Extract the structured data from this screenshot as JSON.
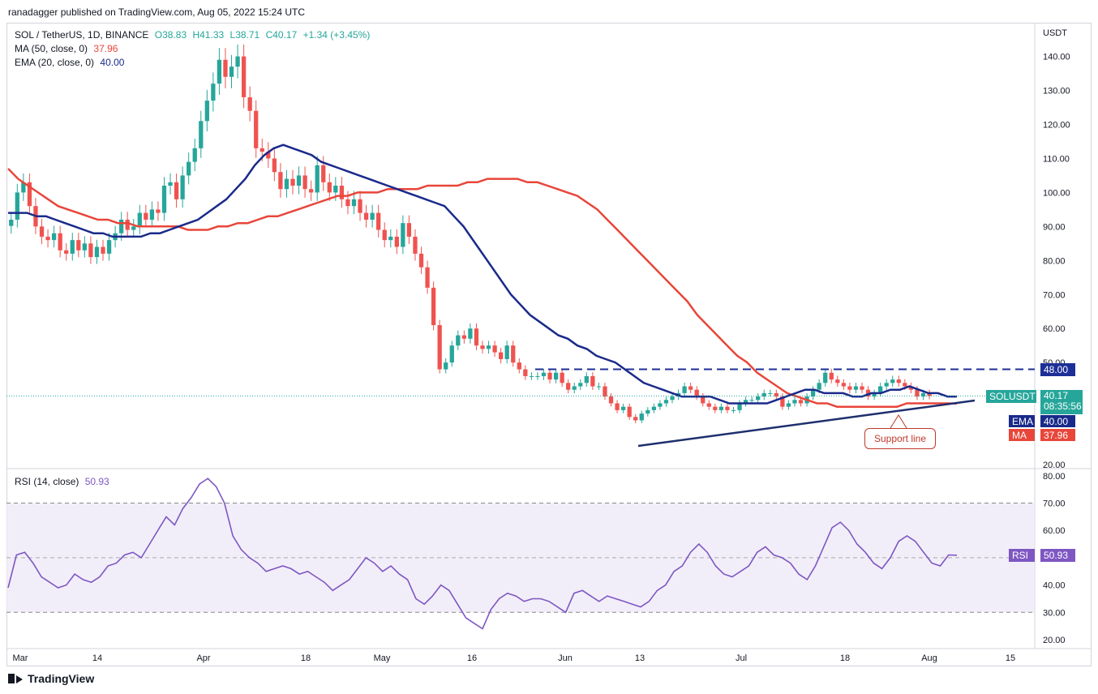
{
  "header": {
    "publisher": "ranadagger published on TradingView.com, Aug 05, 2022 15:24 UTC"
  },
  "legend": {
    "symbol": "SOL / TetherUS, 1D, BINANCE",
    "open": "O38.83",
    "high": "H41.33",
    "low": "L38.71",
    "close": "C40.17",
    "change": "+1.34 (+3.45%)",
    "ma_label": "MA (50, close, 0)",
    "ma_value": "37.96",
    "ema_label": "EMA (20, close, 0)",
    "ema_value": "40.00",
    "rsi_label": "RSI (14, close)",
    "rsi_value": "50.93"
  },
  "price_axis": {
    "unit": "USDT",
    "ticks": [
      "140.00",
      "130.00",
      "120.00",
      "110.00",
      "100.00",
      "90.00",
      "80.00",
      "70.00",
      "60.00",
      "50.00",
      "20.00"
    ]
  },
  "rsi_axis": {
    "ticks": [
      "80.00",
      "70.00",
      "60.00",
      "50.00",
      "40.00",
      "30.00",
      "20.00"
    ]
  },
  "x_axis": {
    "ticks": [
      "Mar",
      "14",
      "Apr",
      "18",
      "May",
      "16",
      "Jun",
      "13",
      "Jul",
      "18",
      "Aug",
      "15"
    ]
  },
  "tags": {
    "resistance": "48.00",
    "symbol": "SOLUSDT",
    "price": "40.17",
    "countdown": "08:35:56",
    "ema_name": "EMA",
    "ema_value": "40.00",
    "ma_name": "MA",
    "ma_value": "37.96",
    "rsi_name": "RSI",
    "rsi_value": "50.93"
  },
  "annotation": {
    "support": "Support line"
  },
  "footer": {
    "brand": "TradingView"
  },
  "colors": {
    "up": "#26a69a",
    "down": "#ef5350",
    "ema": "#1a2a8a",
    "ma": "#e8463a",
    "rsi": "#7e57c2",
    "resistance": "#1e2f97"
  },
  "chart_data": {
    "type": "candlestick",
    "title": "SOL / TetherUS, 1D, BINANCE",
    "ylabel": "USDT",
    "ylim": [
      20,
      145
    ],
    "resistance_level": 48.0,
    "x_range_days": [
      "2022-03-01",
      "2022-08-05"
    ],
    "close": [
      92,
      100,
      103,
      96,
      90,
      87,
      86,
      88,
      83,
      82,
      86,
      83,
      85,
      81,
      84,
      82,
      86,
      88,
      92,
      89,
      90,
      94,
      92,
      95,
      94,
      102,
      103,
      98,
      105,
      109,
      113,
      121,
      127,
      132,
      139,
      134,
      137,
      140,
      128,
      124,
      113,
      112,
      110,
      106,
      101,
      104,
      102,
      105,
      101,
      100,
      108,
      103,
      100,
      102,
      98,
      96,
      98,
      94,
      92,
      94,
      89,
      86,
      87,
      84,
      91,
      87,
      82,
      78,
      72,
      61,
      48,
      50,
      55,
      58,
      57,
      60,
      55,
      54,
      55,
      53,
      51,
      55,
      50,
      48,
      46,
      46,
      46,
      47,
      45,
      47,
      44,
      42,
      43,
      44,
      46,
      43,
      43,
      40,
      38,
      36,
      37,
      34,
      33,
      35,
      36,
      37,
      38,
      39,
      40,
      41,
      43,
      42,
      40,
      38,
      37,
      36,
      37,
      36,
      36,
      38,
      39,
      39,
      40,
      41,
      41,
      40,
      37,
      38,
      39,
      38,
      40,
      42,
      44,
      47,
      45,
      44,
      43,
      42,
      43,
      42,
      40,
      41,
      43,
      44,
      45,
      44,
      43,
      42,
      40,
      41,
      40.17
    ],
    "ma50": [
      107,
      104,
      102,
      100,
      98,
      96,
      95,
      94,
      93,
      92,
      92,
      91,
      91,
      90,
      90,
      90,
      90,
      90,
      89,
      89,
      89,
      90,
      90,
      91,
      91,
      92,
      93,
      93,
      94,
      95,
      96,
      97,
      98,
      99,
      99,
      100,
      100,
      100,
      101,
      101,
      101,
      101,
      102,
      102,
      102,
      102,
      103,
      103,
      104,
      104,
      104,
      104,
      103,
      103,
      102,
      101,
      100,
      99,
      97,
      95,
      92,
      89,
      86,
      83,
      80,
      77,
      74,
      71,
      68,
      64,
      61,
      58,
      55,
      52,
      50,
      47,
      45,
      43,
      41,
      40,
      39,
      38,
      38,
      37,
      37,
      37,
      37,
      37,
      37,
      37,
      38,
      38,
      38,
      38,
      38,
      37.96
    ],
    "ema20": [
      94,
      94,
      94,
      93,
      93,
      92,
      91,
      90,
      89,
      88,
      88,
      87,
      87,
      87,
      87,
      88,
      88,
      89,
      90,
      91,
      92,
      94,
      96,
      98,
      101,
      104,
      108,
      111,
      113,
      114,
      113,
      112,
      111,
      109,
      108,
      107,
      106,
      105,
      104,
      103,
      102,
      101,
      100,
      99,
      98,
      97,
      96,
      93,
      90,
      86,
      82,
      78,
      74,
      70,
      67,
      64,
      62,
      60,
      58,
      57,
      55,
      54,
      52,
      51,
      50,
      48,
      46,
      44,
      43,
      42,
      41,
      40,
      40,
      40,
      40,
      39,
      38,
      38,
      38,
      38,
      38,
      39,
      40,
      41,
      42,
      42,
      41,
      41,
      41,
      40,
      40,
      41,
      41,
      42,
      42,
      43,
      42,
      41,
      41,
      40,
      40.0
    ],
    "rsi": [
      39,
      51,
      52,
      48,
      43,
      41,
      39,
      40,
      44,
      42,
      41,
      43,
      47,
      48,
      51,
      52,
      50,
      55,
      60,
      65,
      62,
      68,
      72,
      77,
      79,
      76,
      70,
      58,
      53,
      50,
      48,
      45,
      46,
      47,
      46,
      44,
      45,
      43,
      41,
      38,
      40,
      42,
      46,
      50,
      48,
      45,
      47,
      44,
      42,
      35,
      33,
      36,
      40,
      38,
      33,
      28,
      26,
      24,
      31,
      35,
      37,
      36,
      34,
      35,
      35,
      34,
      32,
      30,
      37,
      38,
      36,
      34,
      36,
      35,
      34,
      33,
      32,
      34,
      38,
      40,
      45,
      47,
      52,
      55,
      52,
      47,
      44,
      43,
      45,
      47,
      52,
      54,
      51,
      50,
      48,
      44,
      42,
      47,
      54,
      61,
      63,
      60,
      55,
      52,
      48,
      46,
      50,
      56,
      58,
      56,
      52,
      48,
      47,
      51,
      50.93
    ]
  }
}
